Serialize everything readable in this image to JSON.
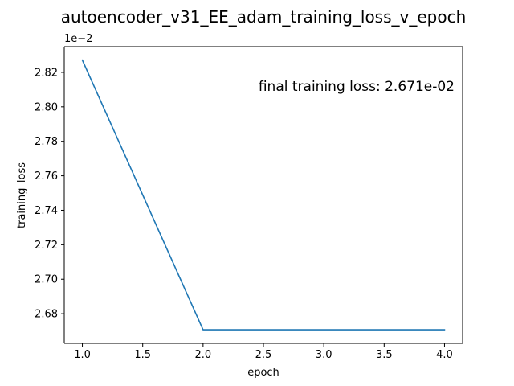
{
  "chart_data": {
    "type": "line",
    "title": "autoencoder_v31_EE_adam_training_loss_v_epoch",
    "xlabel": "epoch",
    "ylabel": "training_loss",
    "y_offset_label": "1e−2",
    "annotation": "final training loss: 2.671e-02",
    "annotation_position": "top-right",
    "grid": false,
    "legend": "none",
    "xlim": [
      0.85,
      4.15
    ],
    "ylim": [
      2.6628,
      2.8349
    ],
    "x_ticks": [
      1.0,
      1.5,
      2.0,
      2.5,
      3.0,
      3.5,
      4.0
    ],
    "x_tick_labels": [
      "1.0",
      "1.5",
      "2.0",
      "2.5",
      "3.0",
      "3.5",
      "4.0"
    ],
    "y_ticks": [
      2.68,
      2.7,
      2.72,
      2.74,
      2.76,
      2.78,
      2.8,
      2.82
    ],
    "y_tick_labels": [
      "2.68",
      "2.70",
      "2.72",
      "2.74",
      "2.76",
      "2.78",
      "2.80",
      "2.82"
    ],
    "series": [
      {
        "x": [
          1,
          2,
          3,
          4
        ],
        "values": [
          2.8271,
          2.6707,
          2.6707,
          2.6707
        ],
        "color": "#1f77b4"
      }
    ]
  }
}
